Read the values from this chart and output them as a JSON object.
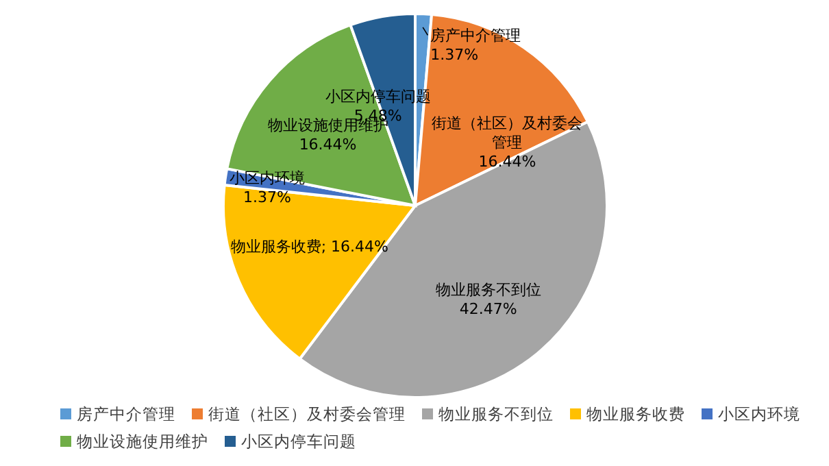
{
  "chart_data": {
    "type": "pie",
    "categories": [
      "房产中介管理",
      "街道（社区）及村委会管理",
      "物业服务不到位",
      "物业服务收费",
      "小区内环境",
      "物业设施使用维护",
      "小区内停车问题"
    ],
    "values": [
      1.37,
      16.44,
      42.47,
      16.44,
      1.37,
      16.44,
      5.48
    ],
    "value_labels": [
      "1.37%",
      "16.44%",
      "42.47%",
      "; 16.44%",
      "1.37%",
      "16.44%",
      "5.48%"
    ],
    "colors": [
      "#5b9bd5",
      "#ed7d31",
      "#a5a5a5",
      "#ffc000",
      "#4472c4",
      "#70ad47",
      "#255e91"
    ],
    "legend": "bottom"
  }
}
